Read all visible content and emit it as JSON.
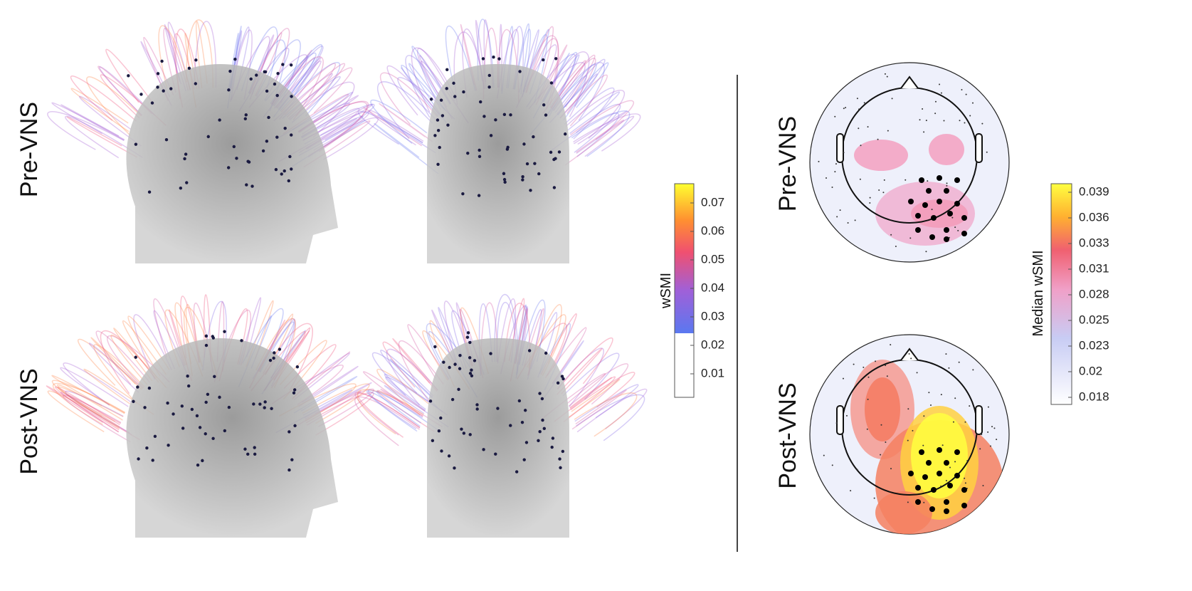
{
  "left_panel": {
    "rows": [
      "Pre-VNS",
      "Post-VNS"
    ],
    "colorbar": {
      "label": "wSMI",
      "ticks": [
        0.07,
        0.06,
        0.05,
        0.04,
        0.03,
        0.02,
        0.01
      ]
    }
  },
  "right_panel": {
    "rows": [
      "Pre-VNS",
      "Post-VNS"
    ],
    "colorbar": {
      "label": "Median wSMI",
      "ticks": [
        0.039,
        0.036,
        0.033,
        0.031,
        0.028,
        0.025,
        0.023,
        0.02,
        0.018
      ]
    }
  }
}
